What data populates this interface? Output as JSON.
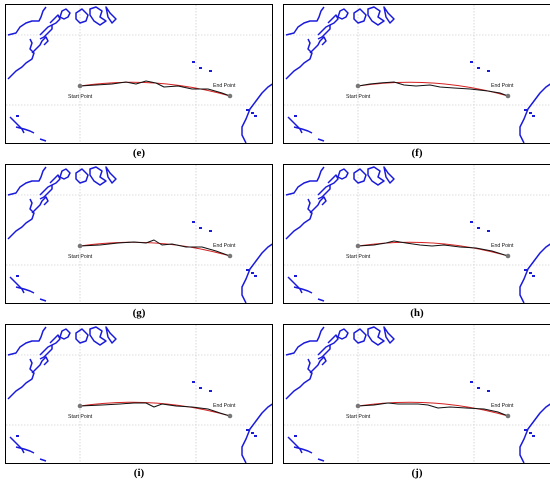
{
  "figure": {
    "start_label": "Start Point",
    "end_label": "End Point",
    "colors": {
      "coastline": "#1a1adb",
      "route_optimized": "#d42020",
      "route_reference": "#111111",
      "grid": "#bdbdbd",
      "marker": "#777777"
    },
    "panels": [
      {
        "caption": "(e)"
      },
      {
        "caption": "(f)"
      },
      {
        "caption": "(g)"
      },
      {
        "caption": "(h)"
      },
      {
        "caption": "(i)"
      },
      {
        "caption": "(j)"
      }
    ]
  }
}
